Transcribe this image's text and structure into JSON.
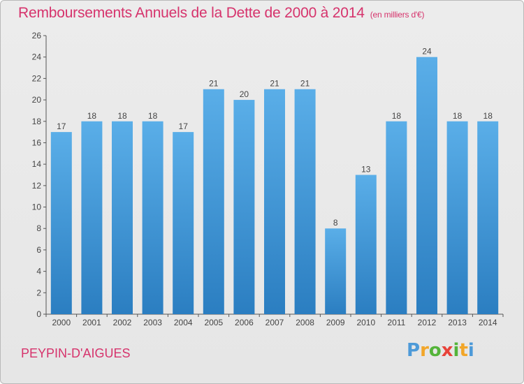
{
  "header": {
    "title": "Remboursements Annuels de la Dette de 2000 à 2014",
    "subtitle": "(en milliers d'€)"
  },
  "footer": {
    "place": "PEYPIN-D'AIGUES",
    "logo_letters": [
      "P",
      "r",
      "o",
      "x",
      "i",
      "t",
      "i"
    ]
  },
  "colors": {
    "title": "#d6336c",
    "bar_top": "#5aaee8",
    "bar_bottom": "#2b7ec1",
    "logo": [
      "#4d9ad8",
      "#f2a629",
      "#54b43a",
      "#e8433a",
      "#54b43a",
      "#f2a629",
      "#4d9ad8"
    ]
  },
  "chart_data": {
    "type": "bar",
    "title": "Remboursements Annuels de la Dette de 2000 à 2014",
    "categories": [
      "2000",
      "2001",
      "2002",
      "2003",
      "2004",
      "2005",
      "2006",
      "2007",
      "2008",
      "2009",
      "2010",
      "2011",
      "2012",
      "2013",
      "2014"
    ],
    "values": [
      17,
      18,
      18,
      18,
      17,
      21,
      20,
      21,
      21,
      8,
      13,
      18,
      24,
      18,
      18
    ],
    "ylim": [
      0,
      26
    ],
    "yticks": [
      0,
      2,
      4,
      6,
      8,
      10,
      12,
      14,
      16,
      18,
      20,
      22,
      24,
      26
    ],
    "grid": false
  }
}
